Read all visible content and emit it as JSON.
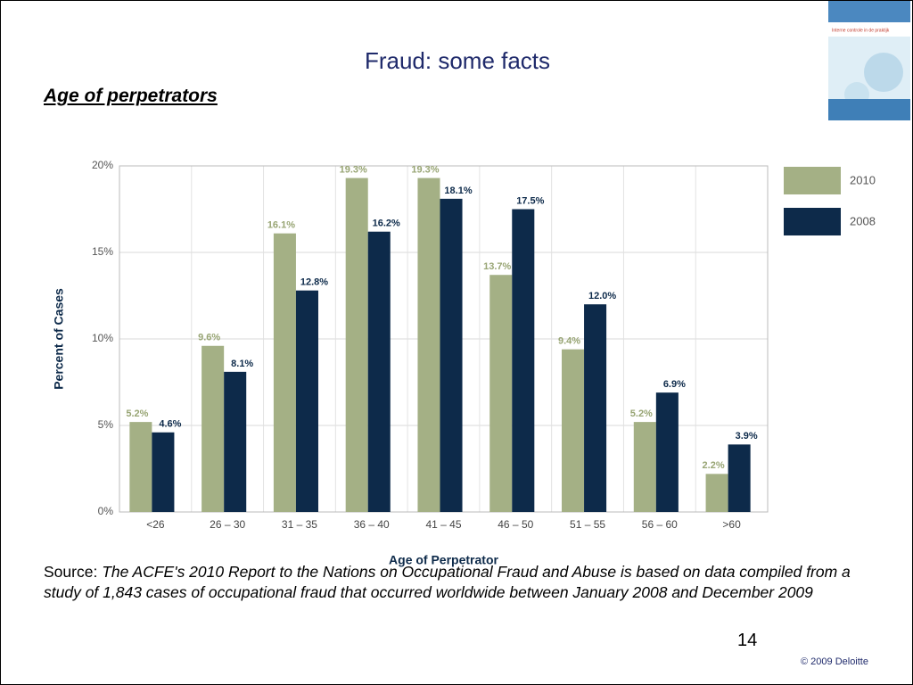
{
  "slide": {
    "title": "Fraud: some facts",
    "subtitle": "Age of perpetrators",
    "source_label": "Source:",
    "source_text": "The ACFE's 2010 Report to the Nations on Occupational Fraud and Abuse is based on data compiled from a study of 1,843 cases of occupational fraud that occurred worldwide between January 2008 and December 2009",
    "page_number": "14",
    "copyright": "© 2009 Deloitte",
    "thumbnail_text": "Interne controle in de praktijk"
  },
  "chart_data": {
    "type": "bar",
    "categories": [
      "<26",
      "26 – 30",
      "31 – 35",
      "36 – 40",
      "41 – 45",
      "46 – 50",
      "51 – 55",
      "56 – 60",
      ">60"
    ],
    "series": [
      {
        "name": "2010",
        "color": "#a4b085",
        "values": [
          5.2,
          9.6,
          16.1,
          19.3,
          19.3,
          13.7,
          9.4,
          5.2,
          2.2
        ],
        "value_labels": [
          "5.2%",
          "9.6%",
          "16.1%",
          "19.3%",
          "19.3%",
          "13.7%",
          "9.4%",
          "5.2%",
          "2.2%"
        ]
      },
      {
        "name": "2008",
        "color": "#0d2a4a",
        "values": [
          4.6,
          8.1,
          12.8,
          16.2,
          18.1,
          17.5,
          12.0,
          6.9,
          3.9
        ],
        "value_labels": [
          "4.6%",
          "8.1%",
          "12.8%",
          "16.2%",
          "18.1%",
          "17.5%",
          "12.0%",
          "6.9%",
          "3.9%"
        ]
      }
    ],
    "xlabel": "Age of Perpetrator",
    "ylabel": "Percent of Cases",
    "ylim": [
      0,
      20
    ],
    "yticks": [
      {
        "value": 0,
        "label": "0%"
      },
      {
        "value": 5,
        "label": "5%"
      },
      {
        "value": 10,
        "label": "10%"
      },
      {
        "value": 15,
        "label": "15%"
      },
      {
        "value": 20,
        "label": "20%"
      }
    ],
    "grid": true,
    "legend": "right"
  }
}
